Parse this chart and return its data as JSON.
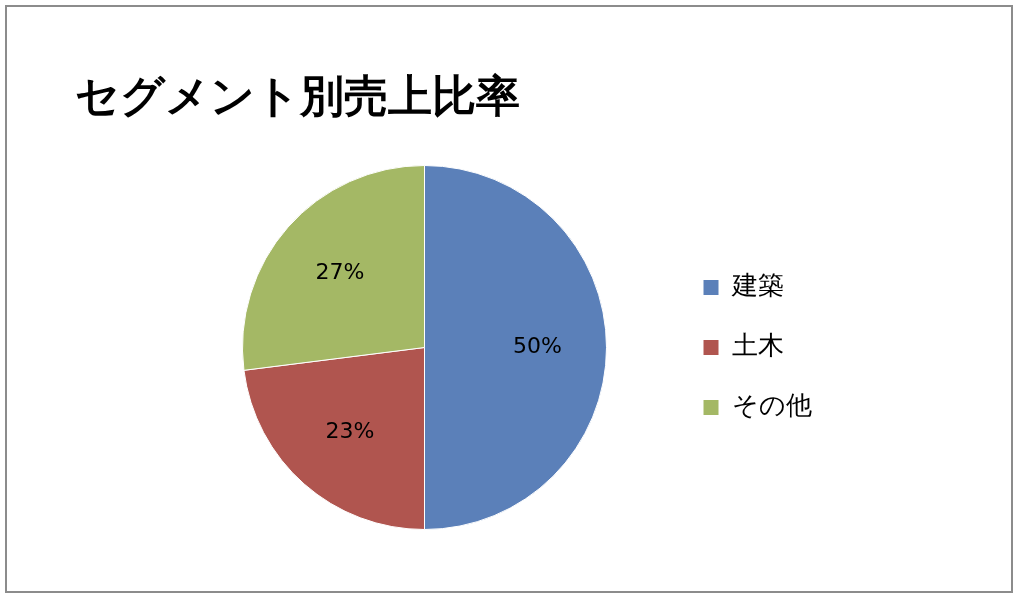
{
  "chart_data": {
    "type": "pie",
    "title": "セグメント別売上比率",
    "categories": [
      "建築",
      "土木",
      "その他"
    ],
    "values": [
      50,
      23,
      27
    ],
    "colors": [
      "#5b80b9",
      "#b0554f",
      "#a4b865"
    ],
    "value_labels": [
      "50%",
      "23%",
      "27%"
    ],
    "legend": "right"
  }
}
